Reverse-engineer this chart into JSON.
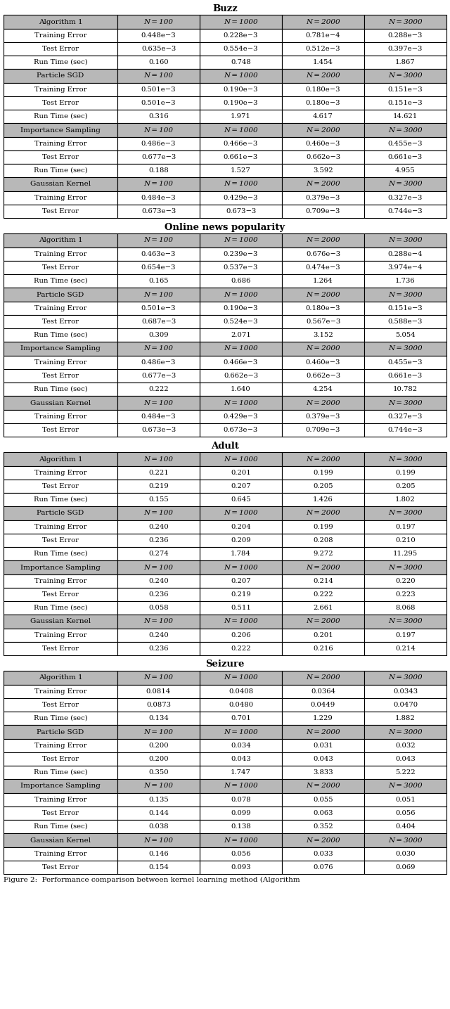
{
  "sections": [
    {
      "title": "Buzz",
      "algorithms": [
        {
          "name": "Algorithm 1",
          "rows": [
            {
              "label": "Training Error",
              "values": [
                "0.448e−3",
                "0.228e−3",
                "0.781e−4",
                "0.288e−3"
              ]
            },
            {
              "label": "Test Error",
              "values": [
                "0.635e−3",
                "0.554e−3",
                "0.512e−3",
                "0.397e−3"
              ]
            },
            {
              "label": "Run Time (sec)",
              "values": [
                "0.160",
                "0.748",
                "1.454",
                "1.867"
              ]
            }
          ]
        },
        {
          "name": "Particle SGD",
          "rows": [
            {
              "label": "Training Error",
              "values": [
                "0.501e−3",
                "0.190e−3",
                "0.180e−3",
                "0.151e−3"
              ]
            },
            {
              "label": "Test Error",
              "values": [
                "0.501e−3",
                "0.190e−3",
                "0.180e−3",
                "0.151e−3"
              ]
            },
            {
              "label": "Run Time (sec)",
              "values": [
                "0.316",
                "1.971",
                "4.617",
                "14.621"
              ]
            }
          ]
        },
        {
          "name": "Importance Sampling",
          "rows": [
            {
              "label": "Training Error",
              "values": [
                "0.486e−3",
                "0.466e−3",
                "0.460e−3",
                "0.455e−3"
              ]
            },
            {
              "label": "Test Error",
              "values": [
                "0.677e−3",
                "0.661e−3",
                "0.662e−3",
                "0.661e−3"
              ]
            },
            {
              "label": "Run Time (sec)",
              "values": [
                "0.188",
                "1.527",
                "3.592",
                "4.955"
              ]
            }
          ]
        },
        {
          "name": "Gaussian Kernel",
          "rows": [
            {
              "label": "Training Error",
              "values": [
                "0.484e−3",
                "0.429e−3",
                "0.379e−3",
                "0.327e−3"
              ]
            },
            {
              "label": "Test Error",
              "values": [
                "0.673e−3",
                "0.673−3",
                "0.709e−3",
                "0.744e−3"
              ]
            }
          ]
        }
      ]
    },
    {
      "title": "Online news popularity",
      "algorithms": [
        {
          "name": "Algorithm 1",
          "rows": [
            {
              "label": "Training Error",
              "values": [
                "0.463e−3",
                "0.239e−3",
                "0.676e−3",
                "0.288e−4"
              ]
            },
            {
              "label": "Test Error",
              "values": [
                "0.654e−3",
                "0.537e−3",
                "0.474e−3",
                "3.974e−4"
              ]
            },
            {
              "label": "Run Time (sec)",
              "values": [
                "0.165",
                "0.686",
                "1.264",
                "1.736"
              ]
            }
          ]
        },
        {
          "name": "Particle SGD",
          "rows": [
            {
              "label": "Training Error",
              "values": [
                "0.501e−3",
                "0.190e−3",
                "0.180e−3",
                "0.151e−3"
              ]
            },
            {
              "label": "Test Error",
              "values": [
                "0.687e−3",
                "0.524e−3",
                "0.567e−3",
                "0.588e−3"
              ]
            },
            {
              "label": "Run Time (sec)",
              "values": [
                "0.309",
                "2.071",
                "3.152",
                "5.054"
              ]
            }
          ]
        },
        {
          "name": "Importance Sampling",
          "rows": [
            {
              "label": "Training Error",
              "values": [
                "0.486e−3",
                "0.466e−3",
                "0.460e−3",
                "0.455e−3"
              ]
            },
            {
              "label": "Test Error",
              "values": [
                "0.677e−3",
                "0.662e−3",
                "0.662e−3",
                "0.661e−3"
              ]
            },
            {
              "label": "Run Time (sec)",
              "values": [
                "0.222",
                "1.640",
                "4.254",
                "10.782"
              ]
            }
          ]
        },
        {
          "name": "Gaussian Kernel",
          "rows": [
            {
              "label": "Training Error",
              "values": [
                "0.484e−3",
                "0.429e−3",
                "0.379e−3",
                "0.327e−3"
              ]
            },
            {
              "label": "Test Error",
              "values": [
                "0.673e−3",
                "0.673e−3",
                "0.709e−3",
                "0.744e−3"
              ]
            }
          ]
        }
      ]
    },
    {
      "title": "Adult",
      "algorithms": [
        {
          "name": "Algorithm 1",
          "rows": [
            {
              "label": "Training Error",
              "values": [
                "0.221",
                "0.201",
                "0.199",
                "0.199"
              ]
            },
            {
              "label": "Test Error",
              "values": [
                "0.219",
                "0.207",
                "0.205",
                "0.205"
              ]
            },
            {
              "label": "Run Time (sec)",
              "values": [
                "0.155",
                "0.645",
                "1.426",
                "1.802"
              ]
            }
          ]
        },
        {
          "name": "Particle SGD",
          "rows": [
            {
              "label": "Training Error",
              "values": [
                "0.240",
                "0.204",
                "0.199",
                "0.197"
              ]
            },
            {
              "label": "Test Error",
              "values": [
                "0.236",
                "0.209",
                "0.208",
                "0.210"
              ]
            },
            {
              "label": "Run Time (sec)",
              "values": [
                "0.274",
                "1.784",
                "9.272",
                "11.295"
              ]
            }
          ]
        },
        {
          "name": "Importance Sampling",
          "rows": [
            {
              "label": "Training Error",
              "values": [
                "0.240",
                "0.207",
                "0.214",
                "0.220"
              ]
            },
            {
              "label": "Test Error",
              "values": [
                "0.236",
                "0.219",
                "0.222",
                "0.223"
              ]
            },
            {
              "label": "Run Time (sec)",
              "values": [
                "0.058",
                "0.511",
                "2.661",
                "8.068"
              ]
            }
          ]
        },
        {
          "name": "Gaussian Kernel",
          "rows": [
            {
              "label": "Training Error",
              "values": [
                "0.240",
                "0.206",
                "0.201",
                "0.197"
              ]
            },
            {
              "label": "Test Error",
              "values": [
                "0.236",
                "0.222",
                "0.216",
                "0.214"
              ]
            }
          ]
        }
      ]
    },
    {
      "title": "Seizure",
      "algorithms": [
        {
          "name": "Algorithm 1",
          "rows": [
            {
              "label": "Training Error",
              "values": [
                "0.0814",
                "0.0408",
                "0.0364",
                "0.0343"
              ]
            },
            {
              "label": "Test Error",
              "values": [
                "0.0873",
                "0.0480",
                "0.0449",
                "0.0470"
              ]
            },
            {
              "label": "Run Time (sec)",
              "values": [
                "0.134",
                "0.701",
                "1.229",
                "1.882"
              ]
            }
          ]
        },
        {
          "name": "Particle SGD",
          "rows": [
            {
              "label": "Training Error",
              "values": [
                "0.200",
                "0.034",
                "0.031",
                "0.032"
              ]
            },
            {
              "label": "Test Error",
              "values": [
                "0.200",
                "0.043",
                "0.043",
                "0.043"
              ]
            },
            {
              "label": "Run Time (sec)",
              "values": [
                "0.350",
                "1.747",
                "3.833",
                "5.222"
              ]
            }
          ]
        },
        {
          "name": "Importance Sampling",
          "rows": [
            {
              "label": "Training Error",
              "values": [
                "0.135",
                "0.078",
                "0.055",
                "0.051"
              ]
            },
            {
              "label": "Test Error",
              "values": [
                "0.144",
                "0.099",
                "0.063",
                "0.056"
              ]
            },
            {
              "label": "Run Time (sec)",
              "values": [
                "0.038",
                "0.138",
                "0.352",
                "0.404"
              ]
            }
          ]
        },
        {
          "name": "Gaussian Kernel",
          "rows": [
            {
              "label": "Training Error",
              "values": [
                "0.146",
                "0.056",
                "0.033",
                "0.030"
              ]
            },
            {
              "label": "Test Error",
              "values": [
                "0.154",
                "0.093",
                "0.076",
                "0.069"
              ]
            }
          ]
        }
      ]
    }
  ],
  "col_headers": [
    "N = 100",
    "N = 1000",
    "N = 2000",
    "N = 3000"
  ],
  "footer": "Figure 2:  Performance comparison between kernel learning method (Algorithm"
}
